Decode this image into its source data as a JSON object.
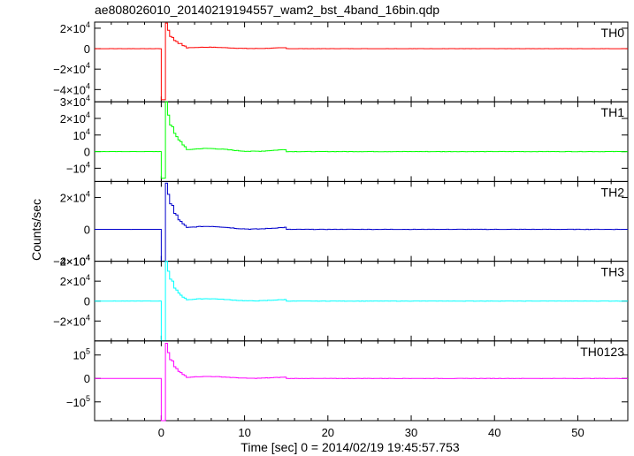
{
  "title": "ae808026010_20140219194557_wam2_bst_4band_16bin.qdp",
  "chart_data": {
    "type": "line",
    "step": true,
    "xlabel": "Time [sec] 0 = 2014/02/19 19:45:57.753",
    "ylabel": "Counts/sec",
    "xlim": [
      -8,
      56
    ],
    "x_ticks": [
      0,
      10,
      20,
      30,
      40,
      50
    ],
    "x_tick_labels": [
      "0",
      "10",
      "20",
      "30",
      "40",
      "50"
    ],
    "bin_width": 0.25,
    "panels": [
      {
        "name": "TH0",
        "color": "#ff0000",
        "ylim": [
          -52000,
          26000
        ],
        "ticks": [
          -40000,
          -20000,
          0,
          20000
        ],
        "tick_labels": [
          {
            "m": "−4×10",
            "e": "4"
          },
          {
            "m": "−2×10",
            "e": "4"
          },
          {
            "m": "0",
            "e": ""
          },
          {
            "m": "2×10",
            "e": "4"
          }
        ],
        "series": {
          "pre": 0,
          "dip": -50000,
          "peak": 25000,
          "decay": [
            25000,
            18000,
            12000,
            11000,
            8000,
            7000,
            5000,
            5000,
            3000,
            2500
          ],
          "tail": 1500,
          "tail_end": 15,
          "noise": 300
        }
      },
      {
        "name": "TH1",
        "color": "#00ff00",
        "ylim": [
          -18000,
          30000
        ],
        "ticks": [
          -10000,
          0,
          10000,
          20000
        ],
        "tick_labels": [
          {
            "m": "−10",
            "e": "4"
          },
          {
            "m": "0",
            "e": ""
          },
          {
            "m": "10",
            "e": "4"
          },
          {
            "m": "2×10",
            "e": "4"
          }
        ],
        "top_label": {
          "m": "3×10",
          "e": "4"
        },
        "series": {
          "pre": 0,
          "dip": -16000,
          "peak": 30000,
          "decay": [
            30000,
            22000,
            16000,
            15000,
            11000,
            9000,
            7000,
            6000,
            4000,
            3000
          ],
          "tail": 2000,
          "tail_end": 15,
          "noise": 350
        }
      },
      {
        "name": "TH2",
        "color": "#0000cc",
        "ylim": [
          -20000,
          30000
        ],
        "ticks": [
          0,
          20000
        ],
        "tick_labels": [
          {
            "m": "0",
            "e": ""
          },
          {
            "m": "2×10",
            "e": "4"
          }
        ],
        "bottom_label": {
          "m": "−2×10",
          "e": "4"
        },
        "series": {
          "pre": 0,
          "dip": -20000,
          "peak": 29000,
          "decay": [
            29000,
            22000,
            16000,
            15000,
            10000,
            9000,
            6000,
            5000,
            3500,
            2500
          ],
          "tail": 2000,
          "tail_end": 15,
          "noise": 350
        }
      },
      {
        "name": "TH3",
        "color": "#00ffff",
        "ylim": [
          -40000,
          40000
        ],
        "ticks": [
          -20000,
          0,
          20000
        ],
        "tick_labels": [
          {
            "m": "−2×10",
            "e": "4"
          },
          {
            "m": "0",
            "e": ""
          },
          {
            "m": "2×10",
            "e": "4"
          }
        ],
        "top_label": {
          "m": "4×10",
          "e": "4"
        },
        "series": {
          "pre": 0,
          "dip": -40000,
          "peak": 40000,
          "decay": [
            40000,
            30000,
            22000,
            20000,
            13000,
            11000,
            8000,
            6000,
            4000,
            3000
          ],
          "tail": 2500,
          "tail_end": 15,
          "noise": 400
        }
      },
      {
        "name": "TH0123",
        "color": "#ff00ff",
        "ylim": [
          -180000,
          160000
        ],
        "ticks": [
          -100000,
          0,
          100000
        ],
        "tick_labels": [
          {
            "m": "−10",
            "e": "5"
          },
          {
            "m": "0",
            "e": ""
          },
          {
            "m": "10",
            "e": "5"
          }
        ],
        "series": {
          "pre": 0,
          "dip": -180000,
          "peak": 150000,
          "decay": [
            150000,
            110000,
            80000,
            75000,
            50000,
            42000,
            30000,
            25000,
            17000,
            12000
          ],
          "tail": 9000,
          "tail_end": 15,
          "noise": 1500
        }
      }
    ]
  }
}
